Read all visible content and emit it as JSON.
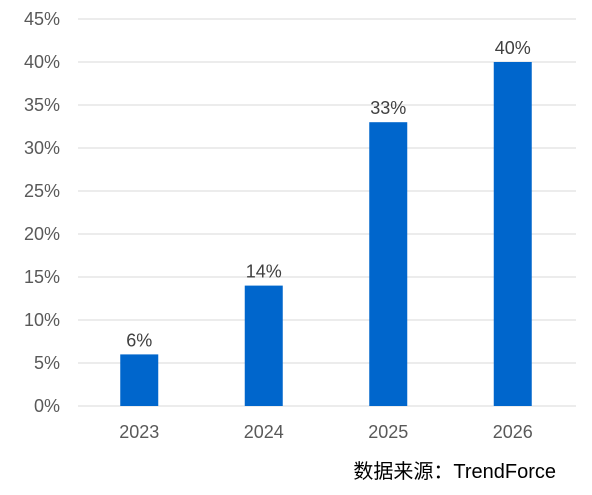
{
  "chart_data": {
    "type": "bar",
    "categories": [
      "2023",
      "2024",
      "2025",
      "2026"
    ],
    "values": [
      6,
      14,
      33,
      40
    ],
    "data_labels": [
      "6%",
      "14%",
      "33%",
      "40%"
    ],
    "yticks": [
      "0%",
      "5%",
      "10%",
      "15%",
      "20%",
      "25%",
      "30%",
      "35%",
      "40%",
      "45%"
    ],
    "ylim": [
      0,
      45
    ],
    "ytick_step": 5,
    "grid": true,
    "bar_color": "#0066CC",
    "grid_color": "#D9D9D9"
  },
  "source_text": "数据来源：TrendForce"
}
